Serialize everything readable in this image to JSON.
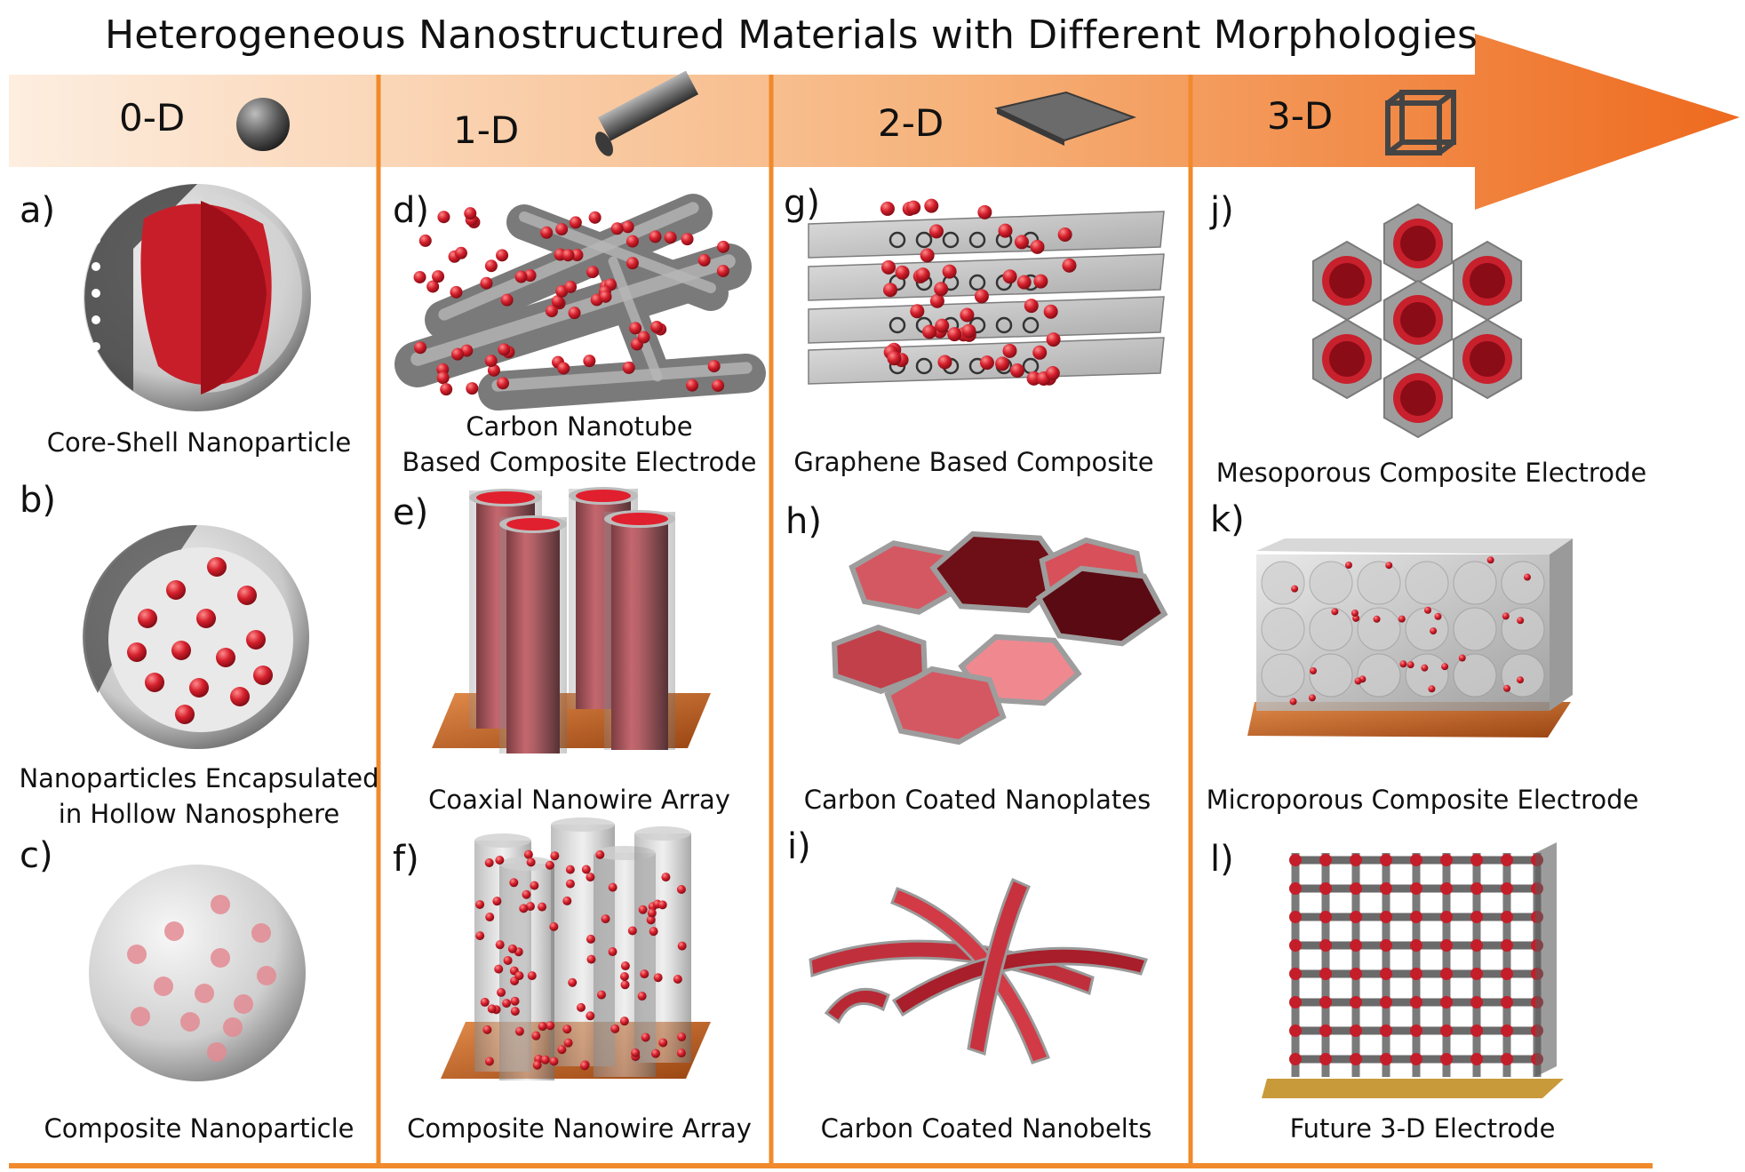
{
  "title": "Heterogeneous  Nanostructured Materials with Different Morphologies",
  "colors": {
    "accent": "#f08a2c",
    "arrow_start": "#fdeee0",
    "arrow_end": "#ee6a1e",
    "material": "#d41f2c",
    "carbon": "#8c8c8c",
    "substrate": "#c8621f"
  },
  "columns": [
    {
      "label": "0-D",
      "icon": "sphere-icon"
    },
    {
      "label": "1-D",
      "icon": "rod-icon"
    },
    {
      "label": "2-D",
      "icon": "sheet-icon"
    },
    {
      "label": "3-D",
      "icon": "cube-frame-icon"
    }
  ],
  "panels": [
    {
      "letter": "a)",
      "caption": [
        "Core-Shell Nanoparticle"
      ],
      "illustration": "core-shell-icon"
    },
    {
      "letter": "b)",
      "caption": [
        "Nanoparticles Encapsulated",
        "in Hollow Nanosphere"
      ],
      "illustration": "hollow-nanosphere-icon"
    },
    {
      "letter": "c)",
      "caption": [
        "Composite Nanoparticle"
      ],
      "illustration": "composite-nanoparticle-icon"
    },
    {
      "letter": "d)",
      "caption": [
        "Carbon Nanotube",
        "Based Composite Electrode"
      ],
      "illustration": "nanotube-network-icon"
    },
    {
      "letter": "e)",
      "caption": [
        "Coaxial Nanowire Array"
      ],
      "illustration": "coaxial-nanowire-icon"
    },
    {
      "letter": "f)",
      "caption": [
        "Composite Nanowire Array"
      ],
      "illustration": "composite-nanowire-icon"
    },
    {
      "letter": "g)",
      "caption": [
        "Graphene Based Composite"
      ],
      "illustration": "graphene-stack-icon"
    },
    {
      "letter": "h)",
      "caption": [
        "Carbon Coated Nanoplates"
      ],
      "illustration": "nanoplates-icon"
    },
    {
      "letter": "i)",
      "caption": [
        "Carbon Coated Nanobelts"
      ],
      "illustration": "nanobelts-icon"
    },
    {
      "letter": "j)",
      "caption": [
        "Mesoporous Composite Electrode"
      ],
      "illustration": "mesoporous-icon"
    },
    {
      "letter": "k)",
      "caption": [
        "Microporous Composite Electrode"
      ],
      "illustration": "microporous-icon"
    },
    {
      "letter": "l)",
      "caption": [
        "Future 3-D Electrode"
      ],
      "illustration": "lattice-electrode-icon"
    }
  ]
}
